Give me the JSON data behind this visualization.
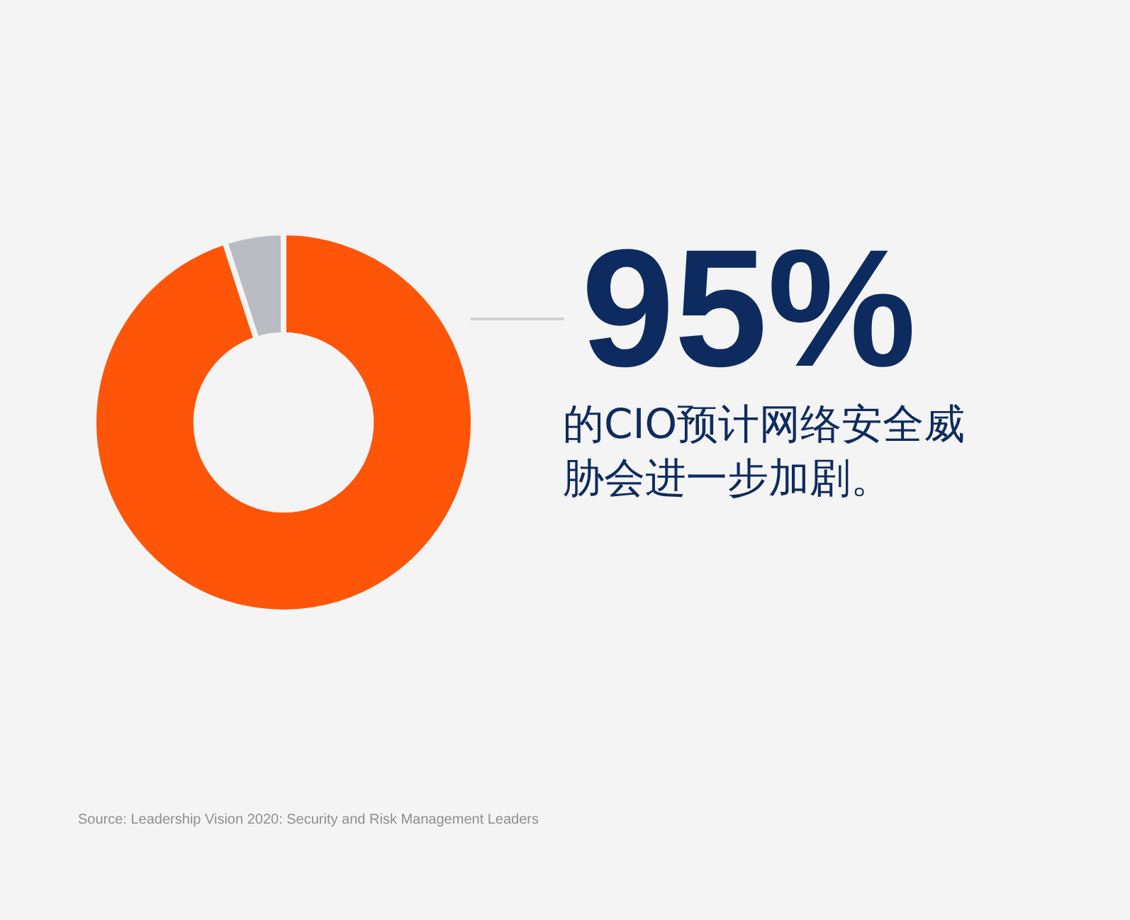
{
  "chart_data": {
    "type": "donut",
    "categories": [
      null,
      null
    ],
    "values": [
      95,
      5
    ],
    "colors": [
      "#fe5508",
      "#b9bcc2"
    ],
    "value_labels": [
      "95%",
      null
    ],
    "legend": false,
    "annotations": [
      "的CIO预计网络安全威胁会进一步加剧。",
      "Source: Leadership Vision 2020: Security and Risk Management Leaders"
    ]
  }
}
